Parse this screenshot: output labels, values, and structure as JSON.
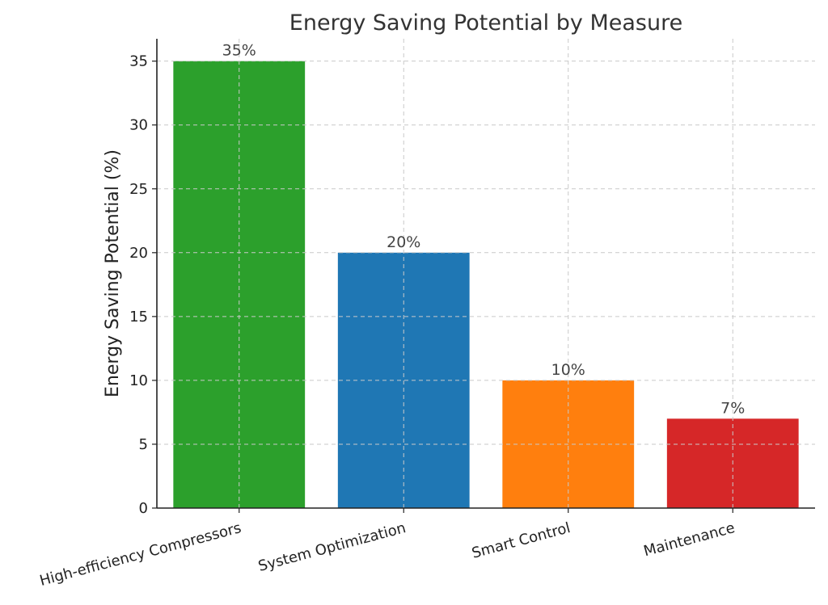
{
  "chart_data": {
    "type": "bar",
    "title": "Energy Saving Potential by Measure",
    "xlabel": "",
    "ylabel": "Energy Saving Potential (%)",
    "categories": [
      "High-efficiency Compressors",
      "System Optimization",
      "Smart Control",
      "Maintenance"
    ],
    "values": [
      35,
      20,
      10,
      7
    ],
    "data_labels": [
      "35%",
      "20%",
      "10%",
      "7%"
    ],
    "colors": [
      "#2ca02c",
      "#1f77b4",
      "#ff7f0e",
      "#d62728"
    ],
    "ylim": [
      0,
      36.75
    ],
    "yticks": [
      0,
      5,
      10,
      15,
      20,
      25,
      30,
      35
    ],
    "grid": true,
    "x_tick_rotation_deg": 15
  }
}
